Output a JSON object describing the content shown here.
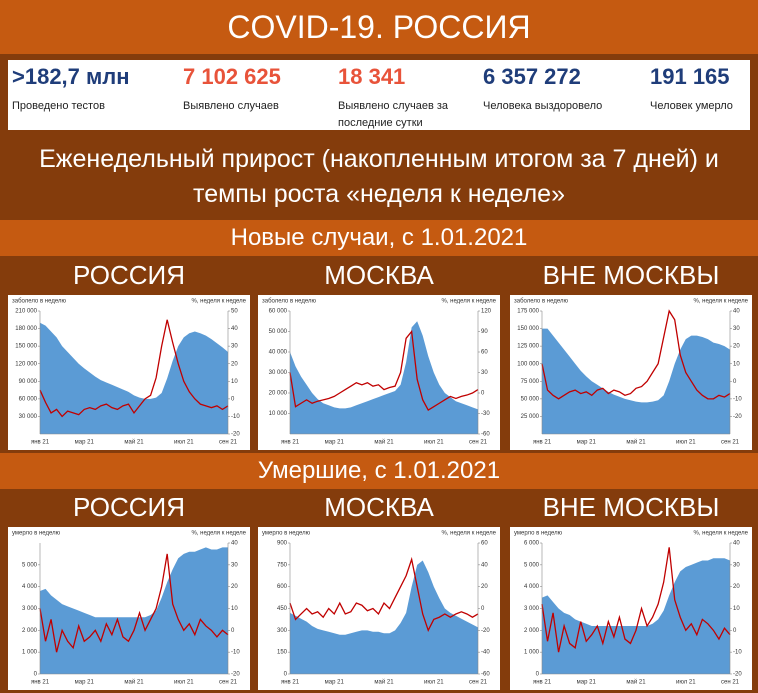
{
  "header": {
    "title": "COVID-19. РОССИЯ"
  },
  "stats": [
    {
      "value": ">182,7 млн",
      "label": "Проведено тестов",
      "color": "#1f3d7a"
    },
    {
      "value": "7 102 625",
      "label": "Выявлено случаев",
      "color": "#e8533a"
    },
    {
      "value": "18 341",
      "label": "Выявлено случаев за последние сутки",
      "color": "#e8533a"
    },
    {
      "value": "6 357 272",
      "label": "Человека выздоровело",
      "color": "#1f3d7a"
    },
    {
      "value": "191 165",
      "label": "Человек умерло",
      "color": "#1f3d7a"
    }
  ],
  "subtitle": "Еженедельный прирост (накопленным итогом за 7 дней) и темпы роста «неделя к неделе»",
  "sections": [
    "Новые случаи, с 1.01.2021",
    "Умершие, с 1.01.2021"
  ],
  "chart_data": [
    {
      "type": "area_line",
      "title": "РОССИЯ",
      "ylabel": "заболело в неделю",
      "y2label": "%, неделя к неделе",
      "categories": [
        "янв 21",
        null,
        null,
        null,
        null,
        null,
        null,
        null,
        "мар 21",
        null,
        null,
        null,
        null,
        null,
        null,
        null,
        null,
        "май 21",
        null,
        null,
        null,
        null,
        null,
        null,
        null,
        null,
        "июл 21",
        null,
        null,
        null,
        null,
        null,
        null,
        null,
        "сен 21"
      ],
      "ylim": [
        0,
        210000
      ],
      "yticks": [
        {
          "value": 30000,
          "label": "30 000"
        },
        {
          "value": 60000,
          "label": "60 000"
        },
        {
          "value": 90000,
          "label": "90 000"
        },
        {
          "value": 120000,
          "label": "120 000"
        },
        {
          "value": 150000,
          "label": "150 000"
        },
        {
          "value": 180000,
          "label": "180 000"
        },
        {
          "value": 210000,
          "label": "210 000"
        }
      ],
      "y2lim": [
        -20,
        50
      ],
      "y2ticks": [
        -20,
        -10,
        0,
        10,
        20,
        30,
        40,
        50
      ],
      "series": [
        {
          "color": "#5b9bd5",
          "values": [
            190000,
            185000,
            175000,
            165000,
            150000,
            140000,
            130000,
            120000,
            112000,
            105000,
            98000,
            92000,
            88000,
            84000,
            80000,
            76000,
            72000,
            66000,
            62000,
            60000,
            60000,
            62000,
            70000,
            95000,
            125000,
            150000,
            165000,
            172000,
            175000,
            172000,
            168000,
            162000,
            155000,
            148000,
            140000
          ]
        },
        {
          "color": "#c00000",
          "axis": "y2",
          "values": [
            5,
            -2,
            -8,
            -6,
            -10,
            -7,
            -8,
            -9,
            -6,
            -5,
            -6,
            -4,
            -3,
            -5,
            -6,
            -4,
            -3,
            -8,
            -4,
            0,
            2,
            12,
            30,
            45,
            32,
            20,
            10,
            4,
            0,
            -3,
            -4,
            -5,
            -4,
            -6,
            -4
          ]
        }
      ]
    },
    {
      "type": "area_line",
      "title": "МОСКВА",
      "ylabel": "заболело в неделю",
      "y2label": "%, неделя к неделе",
      "categories": [
        "янв 21",
        null,
        null,
        null,
        null,
        null,
        null,
        null,
        "мар 21",
        null,
        null,
        null,
        null,
        null,
        null,
        null,
        null,
        "май 21",
        null,
        null,
        null,
        null,
        null,
        null,
        null,
        null,
        "июл 21",
        null,
        null,
        null,
        null,
        null,
        null,
        null,
        "сен 21"
      ],
      "ylim": [
        0,
        60000
      ],
      "yticks": [
        {
          "value": 10000,
          "label": "10 000"
        },
        {
          "value": 20000,
          "label": "20 000"
        },
        {
          "value": 30000,
          "label": "30 000"
        },
        {
          "value": 40000,
          "label": "40 000"
        },
        {
          "value": 50000,
          "label": "50 000"
        },
        {
          "value": 60000,
          "label": "60 000"
        }
      ],
      "y2lim": [
        -60,
        120
      ],
      "y2ticks": [
        -60,
        -30,
        0,
        30,
        60,
        90,
        120
      ],
      "series": [
        {
          "color": "#5b9bd5",
          "values": [
            40000,
            33000,
            28000,
            24000,
            20000,
            17000,
            15000,
            14000,
            13000,
            12500,
            12500,
            13000,
            14000,
            15000,
            16000,
            17000,
            18000,
            19000,
            20000,
            21000,
            24000,
            35000,
            52000,
            55000,
            48000,
            38000,
            30000,
            24000,
            20000,
            18000,
            16000,
            15000,
            14000,
            13000,
            12000
          ]
        },
        {
          "color": "#c00000",
          "axis": "y2",
          "values": [
            30,
            -20,
            -15,
            -10,
            -15,
            -12,
            -10,
            -8,
            -5,
            0,
            5,
            10,
            15,
            12,
            15,
            10,
            12,
            5,
            8,
            10,
            30,
            80,
            90,
            20,
            -10,
            -25,
            -20,
            -15,
            -10,
            -5,
            -8,
            -5,
            -3,
            0,
            5
          ]
        }
      ]
    },
    {
      "type": "area_line",
      "title": "ВНЕ МОСКВЫ",
      "ylabel": "заболело в неделю",
      "y2label": "%, неделя к неделе",
      "categories": [
        "янв 21",
        null,
        null,
        null,
        null,
        null,
        null,
        null,
        "мар 21",
        null,
        null,
        null,
        null,
        null,
        null,
        null,
        null,
        "май 21",
        null,
        null,
        null,
        null,
        null,
        null,
        null,
        null,
        "июл 21",
        null,
        null,
        null,
        null,
        null,
        null,
        null,
        "сен 21"
      ],
      "ylim": [
        0,
        175000
      ],
      "yticks": [
        {
          "value": 25000,
          "label": "25 000"
        },
        {
          "value": 50000,
          "label": "50 000"
        },
        {
          "value": 75000,
          "label": "75 000"
        },
        {
          "value": 100000,
          "label": "100 000"
        },
        {
          "value": 125000,
          "label": "125 000"
        },
        {
          "value": 150000,
          "label": "150 000"
        },
        {
          "value": 175000,
          "label": "175 000"
        }
      ],
      "y2lim": [
        -30,
        40
      ],
      "y2ticks": [
        -20,
        -10,
        0,
        10,
        20,
        30,
        40
      ],
      "series": [
        {
          "color": "#5b9bd5",
          "values": [
            150000,
            150000,
            140000,
            130000,
            120000,
            110000,
            100000,
            90000,
            82000,
            75000,
            70000,
            65000,
            60000,
            56000,
            53000,
            50000,
            48000,
            46000,
            45000,
            45000,
            46000,
            48000,
            55000,
            75000,
            100000,
            120000,
            135000,
            140000,
            140000,
            138000,
            135000,
            130000,
            128000,
            125000,
            120000
          ]
        },
        {
          "color": "#c00000",
          "axis": "y2",
          "values": [
            10,
            -5,
            -8,
            -10,
            -8,
            -6,
            -5,
            -7,
            -6,
            -8,
            -5,
            -4,
            -7,
            -5,
            -6,
            -8,
            -7,
            -4,
            -3,
            0,
            5,
            10,
            25,
            40,
            35,
            15,
            5,
            0,
            -5,
            -8,
            -10,
            -10,
            -8,
            -9,
            -7
          ]
        }
      ]
    },
    {
      "type": "area_line",
      "title": "РОССИЯ",
      "ylabel": "умерло в неделю",
      "y2label": "%, неделя к неделе",
      "categories": [
        "янв 21",
        null,
        null,
        null,
        null,
        null,
        null,
        null,
        "мар 21",
        null,
        null,
        null,
        null,
        null,
        null,
        null,
        null,
        "май 21",
        null,
        null,
        null,
        null,
        null,
        null,
        null,
        null,
        "июл 21",
        null,
        null,
        null,
        null,
        null,
        null,
        null,
        "сен 21"
      ],
      "ylim": [
        0,
        6000
      ],
      "yticks": [
        0,
        {
          "value": 1000,
          "label": "1 000"
        },
        {
          "value": 2000,
          "label": "2 000"
        },
        {
          "value": 3000,
          "label": "3 000"
        },
        {
          "value": 4000,
          "label": "4 000"
        },
        {
          "value": 5000,
          "label": "5 000"
        }
      ],
      "y2lim": [
        -20,
        40
      ],
      "y2ticks": [
        -20,
        -10,
        0,
        10,
        20,
        30,
        40
      ],
      "series": [
        {
          "color": "#5b9bd5",
          "values": [
            3800,
            3900,
            3600,
            3400,
            3200,
            3100,
            3000,
            2900,
            2800,
            2700,
            2600,
            2600,
            2600,
            2600,
            2600,
            2600,
            2600,
            2600,
            2600,
            2600,
            2700,
            2900,
            3500,
            4200,
            4800,
            5300,
            5500,
            5600,
            5600,
            5700,
            5800,
            5700,
            5700,
            5800,
            5800
          ]
        },
        {
          "color": "#c00000",
          "axis": "y2",
          "values": [
            10,
            -5,
            5,
            -10,
            0,
            -5,
            -8,
            2,
            -5,
            -3,
            0,
            -5,
            3,
            -2,
            5,
            -3,
            -5,
            0,
            8,
            0,
            5,
            10,
            20,
            35,
            12,
            5,
            0,
            3,
            -2,
            5,
            2,
            0,
            -3,
            0,
            -2
          ]
        }
      ]
    },
    {
      "type": "area_line",
      "title": "МОСКВА",
      "ylabel": "умерло в неделю",
      "y2label": "%, неделя к неделе",
      "categories": [
        "янв 21",
        null,
        null,
        null,
        null,
        null,
        null,
        null,
        "мар 21",
        null,
        null,
        null,
        null,
        null,
        null,
        null,
        null,
        "май 21",
        null,
        null,
        null,
        null,
        null,
        null,
        null,
        null,
        "июл 21",
        null,
        null,
        null,
        null,
        null,
        null,
        null,
        "сен 21"
      ],
      "ylim": [
        0,
        900
      ],
      "yticks": [
        0,
        150,
        300,
        450,
        600,
        750,
        900
      ],
      "y2lim": [
        -60,
        60
      ],
      "y2ticks": [
        -60,
        -40,
        -20,
        0,
        20,
        40,
        60
      ],
      "series": [
        {
          "color": "#5b9bd5",
          "values": [
            420,
            400,
            380,
            360,
            330,
            310,
            300,
            290,
            280,
            270,
            270,
            280,
            290,
            300,
            300,
            290,
            290,
            280,
            280,
            300,
            350,
            420,
            600,
            750,
            780,
            700,
            600,
            520,
            450,
            420,
            400,
            380,
            360,
            340,
            320
          ]
        },
        {
          "color": "#c00000",
          "axis": "y2",
          "values": [
            5,
            -10,
            -5,
            0,
            -5,
            -3,
            -8,
            0,
            -5,
            5,
            -5,
            -3,
            5,
            3,
            -2,
            0,
            -5,
            5,
            0,
            10,
            20,
            30,
            45,
            20,
            -5,
            -20,
            -10,
            -8,
            -5,
            -8,
            -5,
            -3,
            -5,
            -8,
            -5
          ]
        }
      ]
    },
    {
      "type": "area_line",
      "title": "ВНЕ МОСКВЫ",
      "ylabel": "умерло в неделю",
      "y2label": "%, неделя к неделе",
      "categories": [
        "янв 21",
        null,
        null,
        null,
        null,
        null,
        null,
        null,
        "мар 21",
        null,
        null,
        null,
        null,
        null,
        null,
        null,
        null,
        "май 21",
        null,
        null,
        null,
        null,
        null,
        null,
        null,
        null,
        "июл 21",
        null,
        null,
        null,
        null,
        null,
        null,
        null,
        "сен 21"
      ],
      "ylim": [
        0,
        6000
      ],
      "yticks": [
        0,
        {
          "value": 1000,
          "label": "1 000"
        },
        {
          "value": 2000,
          "label": "2 000"
        },
        {
          "value": 3000,
          "label": "3 000"
        },
        {
          "value": 4000,
          "label": "4 000"
        },
        {
          "value": 5000,
          "label": "5 000"
        },
        {
          "value": 6000,
          "label": "6 000"
        }
      ],
      "y2lim": [
        -20,
        40
      ],
      "y2ticks": [
        -20,
        -10,
        0,
        10,
        20,
        30,
        40
      ],
      "series": [
        {
          "color": "#5b9bd5",
          "values": [
            3500,
            3600,
            3300,
            3000,
            2800,
            2700,
            2500,
            2400,
            2300,
            2200,
            2200,
            2200,
            2200,
            2200,
            2200,
            2200,
            2200,
            2200,
            2200,
            2200,
            2300,
            2500,
            2900,
            3600,
            4200,
            4700,
            4900,
            5000,
            5100,
            5200,
            5200,
            5300,
            5300,
            5300,
            5200
          ]
        },
        {
          "color": "#c00000",
          "axis": "y2",
          "values": [
            12,
            -5,
            8,
            -10,
            2,
            -6,
            -8,
            4,
            -5,
            -2,
            2,
            -6,
            4,
            -3,
            6,
            -4,
            -6,
            0,
            10,
            2,
            6,
            12,
            22,
            38,
            14,
            6,
            0,
            3,
            -2,
            5,
            3,
            0,
            -4,
            1,
            -2
          ]
        }
      ]
    }
  ]
}
